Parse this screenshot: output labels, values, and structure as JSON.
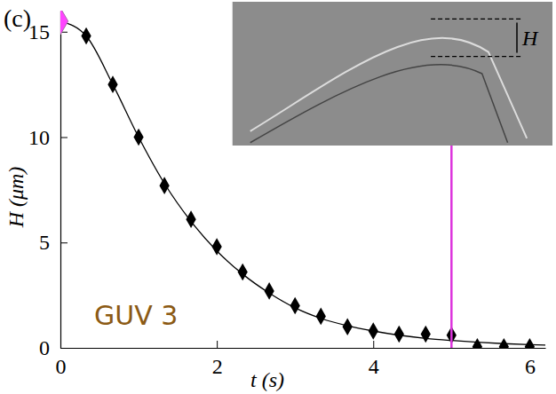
{
  "chart_data": {
    "type": "scatter",
    "panel_label": "(c)",
    "x_label": "t (s)",
    "y_label": "H (μm)",
    "annotations": [
      "GUV 3"
    ],
    "inset_label": "H",
    "xlim": [
      0,
      6.2
    ],
    "ylim": [
      0,
      16
    ],
    "xticks": [
      0,
      2,
      4,
      6
    ],
    "yticks": [
      0,
      5,
      10,
      15
    ],
    "series": [
      {
        "type": "line",
        "color": "#000000",
        "line_style": "solid",
        "x": [
          0,
          0.33,
          0.67,
          1,
          1.33,
          1.67,
          2,
          2.33,
          2.67,
          3,
          3.33,
          3.67,
          4,
          4.33,
          4.67,
          5,
          5.33,
          5.67,
          6,
          6.2
        ],
        "values": [
          15.5,
          14.8,
          12.5,
          10.0,
          7.8,
          6.0,
          4.6,
          3.5,
          2.6,
          1.9,
          1.4,
          1.05,
          0.8,
          0.6,
          0.45,
          0.35,
          0.27,
          0.2,
          0.15,
          0.13
        ]
      },
      {
        "type": "scatter",
        "color": "#000000",
        "marker": "diamond",
        "x": [
          0.33,
          0.67,
          1,
          1.33,
          1.67,
          2,
          2.33,
          2.67,
          3,
          3.33,
          3.67,
          4,
          4.33,
          4.67,
          5,
          5.33,
          5.67,
          6
        ],
        "values": [
          14.8,
          12.5,
          10.0,
          7.7,
          6.1,
          4.8,
          3.6,
          2.7,
          2.0,
          1.5,
          1.0,
          0.8,
          0.65,
          0.65,
          0.6,
          0.05,
          0.05,
          0.05
        ]
      },
      {
        "type": "scatter",
        "color": "#ff44ff",
        "marker": "diamond",
        "x": [
          0
        ],
        "values": [
          15.5
        ]
      },
      {
        "type": "line",
        "color": "#dd33dd",
        "line_style": "solid",
        "x": [
          5,
          5
        ],
        "values": [
          0,
          9.6
        ]
      }
    ]
  }
}
